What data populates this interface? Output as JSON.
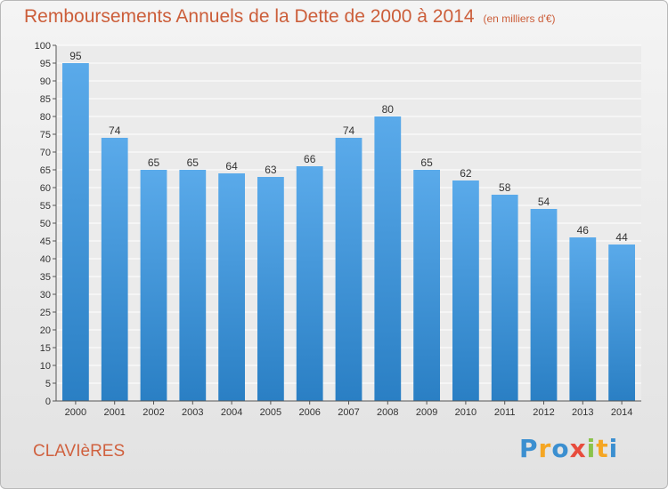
{
  "chart_data": {
    "type": "bar",
    "title": "Remboursements Annuels de la Dette de 2000 à 2014",
    "subtitle": "(en milliers d'€)",
    "categories": [
      "2000",
      "2001",
      "2002",
      "2003",
      "2004",
      "2005",
      "2006",
      "2007",
      "2008",
      "2009",
      "2010",
      "2011",
      "2012",
      "2013",
      "2014"
    ],
    "values": [
      95,
      74,
      65,
      65,
      64,
      63,
      66,
      74,
      80,
      65,
      62,
      58,
      54,
      46,
      44
    ],
    "ylim": [
      0,
      100
    ],
    "ytick_step": 5,
    "grid": true,
    "bar_color_top": "#5aaaea",
    "bar_color_bottom": "#2a7fc4"
  },
  "footer": {
    "commune": "CLAVIèRES",
    "logo": "Proxiti"
  }
}
